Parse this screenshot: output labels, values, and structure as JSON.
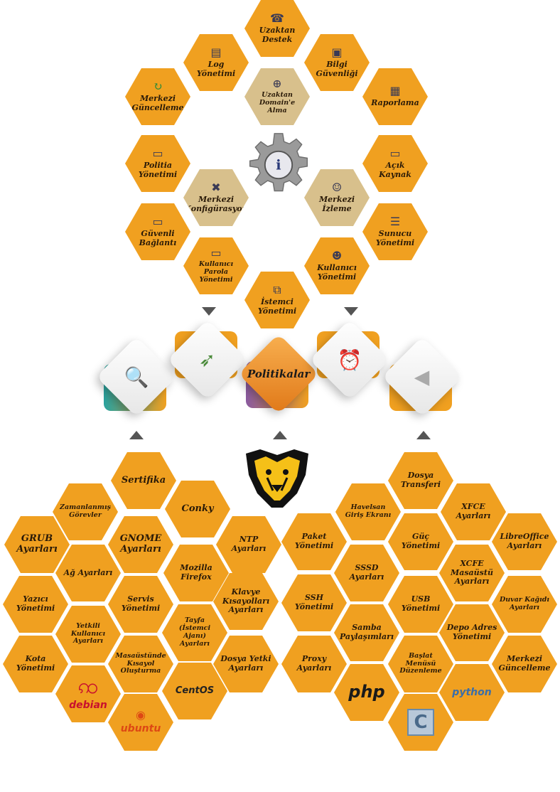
{
  "top": {
    "uzaktan_destek": "Uzaktan Destek",
    "log_yonetimi": "Log Yönetimi",
    "bilgi_guvenligi": "Bilgi Güvenliği",
    "merkezi_guncelleme": "Merkezi Güncelleme",
    "uzaktan_domain": "Uzaktan Domain'e Alma",
    "raporlama": "Raporlama",
    "politika_yonetimi": "Politia Yönetimi",
    "acik_kaynak": "Açık Kaynak",
    "merkezi_konfigurasyon": "Merkezi Konfigürasyon",
    "merkezi_izleme": "Merkezi İzleme",
    "guvenli_baglanti": "Güvenli Bağlantı",
    "sunucu_yonetimi": "Sunucu Yönetimi",
    "kullanici_parola": "Kullanıcı Parola Yönetimi",
    "kullanici_yonetimi": "Kullanıcı Yönetimi",
    "istemci_yonetimi": "İstemci Yönetimi"
  },
  "middle": {
    "politikalar": "Politikalar"
  },
  "left": {
    "sertifika": "Sertifika",
    "zamanlanmis": "Zamanlanmış Görevler",
    "conky": "Conky",
    "grub": "GRUB Ayarları",
    "gnome": "GNOME Ayarları",
    "ntp": "NTP Ayarları",
    "ag": "Ağ Ayarları",
    "mozilla": "Mozilla Firefox",
    "yazici": "Yazıcı Yönetimi",
    "servis": "Servis Yönetimi",
    "klavye": "Klavye Kısayolları Ayarları",
    "yetkili": "Yetkili Kullanıcı Ayarları",
    "tayfa": "Tayfa (İstemci Ajanı) Ayarları",
    "kota": "Kota Yönetimi",
    "masaustu_kisayol": "Masaüstünde Kısayol Oluşturma",
    "dosya_yetki": "Dosya Yetki Ayarları",
    "debian": "debian",
    "centos": "CentOS",
    "ubuntu": "ubuntu"
  },
  "right": {
    "dosya_transferi": "Dosya Transferi",
    "havelsan": "Havelsan Giriş Ekranı",
    "xfce_ayarlari": "XFCE Ayarları",
    "paket": "Paket Yönetimi",
    "guc": "Güç Yönetimi",
    "libreoffice": "LibreOffice Ayarları",
    "sssd": "SSSD Ayarları",
    "xfce_masaustu": "XCFE Masaüstü Ayarları",
    "ssh": "SSH Yönetimi",
    "usb": "USB Yönetimi",
    "duvar_kagidi": "Duvar Kağıdı Ayarları",
    "samba": "Samba Paylaşımları",
    "depo": "Depo Adres Yönetimi",
    "proxy": "Proxy Ayarları",
    "baslat": "Başlat Menüsü Düzenleme",
    "merkezi_guncelleme": "Merkezi Güncelleme",
    "php": "php",
    "python": "python",
    "c": "C"
  },
  "colors": {
    "hex_orange": "#f0a020",
    "hex_tan": "#d8c08c",
    "arrow": "#555555"
  }
}
